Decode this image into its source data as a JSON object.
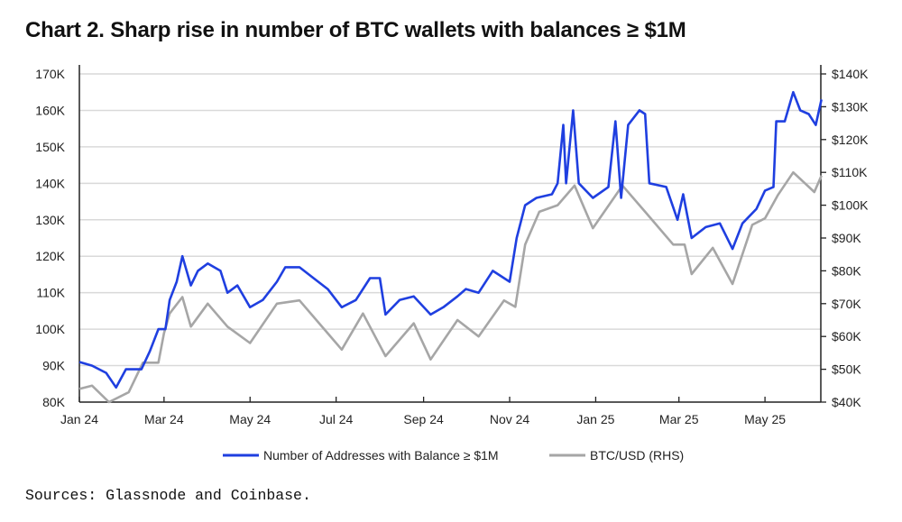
{
  "chart_data": {
    "type": "line",
    "title": "Chart 2. Sharp rise in number of BTC wallets with balances ≥ $1M",
    "source": "Sources: Glassnode and Coinbase.",
    "grid": true,
    "legend_placement": "bottom",
    "x_ticks": [
      "Jan 24",
      "Mar 24",
      "May 24",
      "Jul 24",
      "Sep 24",
      "Nov 24",
      "Jan 25",
      "Mar 25",
      "May 25"
    ],
    "x_tick_dates": [
      "2024-01-01",
      "2024-03-01",
      "2024-05-01",
      "2024-07-01",
      "2024-09-01",
      "2024-11-01",
      "2025-01-01",
      "2025-03-01",
      "2025-05-01"
    ],
    "xlim": [
      "2024-01-01",
      "2025-06-10"
    ],
    "y_left": {
      "ylim": [
        80000,
        170000
      ],
      "ticks": [
        "80K",
        "90K",
        "100K",
        "110K",
        "120K",
        "130K",
        "140K",
        "150K",
        "160K",
        "170K"
      ]
    },
    "y_right": {
      "ylim": [
        40000,
        140000
      ],
      "ticks": [
        "$40K",
        "$50K",
        "$60K",
        "$70K",
        "$80K",
        "$90K",
        "$100K",
        "$110K",
        "$120K",
        "$130K",
        "$140K"
      ]
    },
    "series": [
      {
        "name": "Number of Addresses with Balance ≥ $1M",
        "axis": "left",
        "color": "#1f3fe0",
        "points": [
          [
            "2024-01-01",
            91000
          ],
          [
            "2024-01-10",
            90000
          ],
          [
            "2024-01-20",
            88000
          ],
          [
            "2024-01-27",
            84000
          ],
          [
            "2024-02-03",
            89000
          ],
          [
            "2024-02-14",
            89000
          ],
          [
            "2024-02-20",
            94000
          ],
          [
            "2024-02-26",
            100000
          ],
          [
            "2024-03-02",
            100000
          ],
          [
            "2024-03-05",
            108000
          ],
          [
            "2024-03-10",
            113000
          ],
          [
            "2024-03-14",
            120000
          ],
          [
            "2024-03-20",
            112000
          ],
          [
            "2024-03-25",
            116000
          ],
          [
            "2024-04-01",
            118000
          ],
          [
            "2024-04-10",
            116000
          ],
          [
            "2024-04-15",
            110000
          ],
          [
            "2024-04-22",
            112000
          ],
          [
            "2024-05-01",
            106000
          ],
          [
            "2024-05-10",
            108000
          ],
          [
            "2024-05-20",
            113000
          ],
          [
            "2024-05-26",
            117000
          ],
          [
            "2024-06-05",
            117000
          ],
          [
            "2024-06-15",
            114000
          ],
          [
            "2024-06-25",
            111000
          ],
          [
            "2024-07-05",
            106000
          ],
          [
            "2024-07-15",
            108000
          ],
          [
            "2024-07-25",
            114000
          ],
          [
            "2024-08-01",
            114000
          ],
          [
            "2024-08-05",
            104000
          ],
          [
            "2024-08-15",
            108000
          ],
          [
            "2024-08-25",
            109000
          ],
          [
            "2024-09-06",
            104000
          ],
          [
            "2024-09-15",
            106000
          ],
          [
            "2024-09-25",
            109000
          ],
          [
            "2024-10-01",
            111000
          ],
          [
            "2024-10-10",
            110000
          ],
          [
            "2024-10-20",
            116000
          ],
          [
            "2024-11-01",
            113000
          ],
          [
            "2024-11-06",
            125000
          ],
          [
            "2024-11-12",
            134000
          ],
          [
            "2024-11-20",
            136000
          ],
          [
            "2024-12-01",
            137000
          ],
          [
            "2024-12-05",
            140000
          ],
          [
            "2024-12-09",
            156000
          ],
          [
            "2024-12-11",
            140000
          ],
          [
            "2024-12-16",
            160000
          ],
          [
            "2024-12-20",
            140000
          ],
          [
            "2024-12-30",
            136000
          ],
          [
            "2025-01-10",
            139000
          ],
          [
            "2025-01-15",
            157000
          ],
          [
            "2025-01-19",
            136000
          ],
          [
            "2025-01-24",
            156000
          ],
          [
            "2025-02-01",
            160000
          ],
          [
            "2025-02-05",
            159000
          ],
          [
            "2025-02-08",
            140000
          ],
          [
            "2025-02-20",
            139000
          ],
          [
            "2025-02-28",
            130000
          ],
          [
            "2025-03-04",
            137000
          ],
          [
            "2025-03-10",
            125000
          ],
          [
            "2025-03-20",
            128000
          ],
          [
            "2025-03-30",
            129000
          ],
          [
            "2025-04-08",
            122000
          ],
          [
            "2025-04-15",
            129000
          ],
          [
            "2025-04-25",
            133000
          ],
          [
            "2025-05-01",
            138000
          ],
          [
            "2025-05-07",
            139000
          ],
          [
            "2025-05-09",
            157000
          ],
          [
            "2025-05-15",
            157000
          ],
          [
            "2025-05-21",
            165000
          ],
          [
            "2025-05-26",
            160000
          ],
          [
            "2025-06-01",
            159000
          ],
          [
            "2025-06-06",
            156000
          ],
          [
            "2025-06-10",
            163000
          ]
        ]
      },
      {
        "name": "BTC/USD (RHS)",
        "axis": "right",
        "color": "#a6a6a6",
        "points": [
          [
            "2024-01-01",
            44000
          ],
          [
            "2024-01-10",
            45000
          ],
          [
            "2024-01-22",
            40000
          ],
          [
            "2024-02-05",
            43000
          ],
          [
            "2024-02-15",
            52000
          ],
          [
            "2024-02-26",
            52000
          ],
          [
            "2024-03-01",
            61000
          ],
          [
            "2024-03-05",
            67000
          ],
          [
            "2024-03-14",
            72000
          ],
          [
            "2024-03-20",
            63000
          ],
          [
            "2024-04-01",
            70000
          ],
          [
            "2024-04-15",
            63000
          ],
          [
            "2024-05-01",
            58000
          ],
          [
            "2024-05-20",
            70000
          ],
          [
            "2024-06-05",
            71000
          ],
          [
            "2024-06-25",
            61000
          ],
          [
            "2024-07-05",
            56000
          ],
          [
            "2024-07-20",
            67000
          ],
          [
            "2024-08-05",
            54000
          ],
          [
            "2024-08-25",
            64000
          ],
          [
            "2024-09-06",
            53000
          ],
          [
            "2024-09-25",
            65000
          ],
          [
            "2024-10-10",
            60000
          ],
          [
            "2024-10-28",
            71000
          ],
          [
            "2024-11-05",
            69000
          ],
          [
            "2024-11-12",
            88000
          ],
          [
            "2024-11-22",
            98000
          ],
          [
            "2024-12-05",
            100000
          ],
          [
            "2024-12-17",
            106000
          ],
          [
            "2024-12-30",
            93000
          ],
          [
            "2025-01-20",
            106000
          ],
          [
            "2025-02-05",
            98000
          ],
          [
            "2025-02-25",
            88000
          ],
          [
            "2025-03-05",
            88000
          ],
          [
            "2025-03-10",
            79000
          ],
          [
            "2025-03-25",
            87000
          ],
          [
            "2025-04-08",
            76000
          ],
          [
            "2025-04-22",
            94000
          ],
          [
            "2025-05-01",
            96000
          ],
          [
            "2025-05-10",
            103000
          ],
          [
            "2025-05-21",
            110000
          ],
          [
            "2025-06-05",
            104000
          ],
          [
            "2025-06-10",
            109000
          ]
        ]
      }
    ]
  }
}
